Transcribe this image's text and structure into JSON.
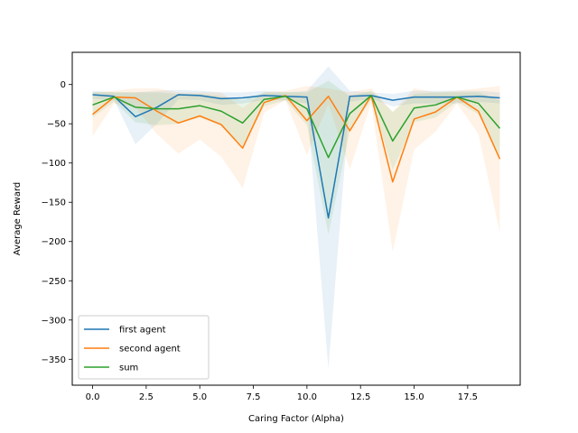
{
  "chart_data": {
    "type": "line",
    "title": "",
    "xlabel": "Caring Factor (Alpha)",
    "ylabel": "Average Reward",
    "xlim": [
      -0.95,
      19.95
    ],
    "ylim": [
      -383,
      41
    ],
    "xticks": [
      0.0,
      2.5,
      5.0,
      7.5,
      10.0,
      12.5,
      15.0,
      17.5
    ],
    "xtick_labels": [
      "0.0",
      "2.5",
      "5.0",
      "7.5",
      "10.0",
      "12.5",
      "15.0",
      "17.5"
    ],
    "yticks": [
      0,
      -50,
      -100,
      -150,
      -200,
      -250,
      -300,
      -350
    ],
    "ytick_labels": [
      "0",
      "−50",
      "−100",
      "−150",
      "−200",
      "−250",
      "−300",
      "−350"
    ],
    "grid": false,
    "legend_position": "lower-left",
    "x": [
      0,
      1,
      2,
      3,
      4,
      5,
      6,
      7,
      8,
      9,
      10,
      11,
      12,
      13,
      14,
      15,
      16,
      17,
      18,
      19
    ],
    "series": [
      {
        "name": "first agent",
        "color": "#1f77b4",
        "values": [
          -13,
          -15,
          -41,
          -29,
          -13,
          -14,
          -18,
          -17,
          -14,
          -15,
          -16,
          -170,
          -15,
          -14,
          -20,
          -16,
          -16,
          -16,
          -15,
          -17
        ],
        "upper": [
          -8,
          -10,
          -10,
          -8,
          -7,
          -8,
          -10,
          -10,
          -8,
          -10,
          -8,
          23,
          -8,
          -10,
          -12,
          -8,
          -8,
          -8,
          -8,
          -10
        ],
        "lower": [
          -18,
          -20,
          -76,
          -50,
          -19,
          -20,
          -26,
          -24,
          -20,
          -20,
          -24,
          -362,
          -22,
          -18,
          -28,
          -24,
          -24,
          -24,
          -22,
          -24
        ]
      },
      {
        "name": "second agent",
        "color": "#ff7f0e",
        "values": [
          -38,
          -16,
          -17,
          -34,
          -49,
          -40,
          -51,
          -81,
          -23,
          -14,
          -46,
          -15,
          -59,
          -14,
          -124,
          -44,
          -35,
          -16,
          -34,
          -95
        ],
        "upper": [
          -10,
          -8,
          -5,
          -5,
          -10,
          -10,
          -10,
          -30,
          -10,
          -8,
          -2,
          -5,
          -10,
          -5,
          -35,
          -5,
          -10,
          -8,
          -5,
          -2
        ],
        "lower": [
          -66,
          -24,
          -29,
          -63,
          -88,
          -70,
          -92,
          -132,
          -36,
          -20,
          -90,
          -25,
          -108,
          -23,
          -213,
          -83,
          -60,
          -24,
          -63,
          -188
        ]
      },
      {
        "name": "sum",
        "color": "#2ca02c",
        "values": [
          -26,
          -16,
          -29,
          -31,
          -31,
          -27,
          -34,
          -49,
          -19,
          -15,
          -31,
          -93,
          -37,
          -14,
          -72,
          -30,
          -26,
          -16,
          -24,
          -56
        ],
        "upper": [
          -10,
          -10,
          -10,
          -10,
          -12,
          -12,
          -15,
          -20,
          -10,
          -10,
          -10,
          5,
          -15,
          -8,
          -35,
          -12,
          -10,
          -10,
          -10,
          -20
        ],
        "lower": [
          -42,
          -22,
          -48,
          -52,
          -50,
          -42,
          -53,
          -78,
          -28,
          -20,
          -52,
          -191,
          -59,
          -20,
          -109,
          -48,
          -42,
          -22,
          -38,
          -92
        ]
      }
    ]
  }
}
